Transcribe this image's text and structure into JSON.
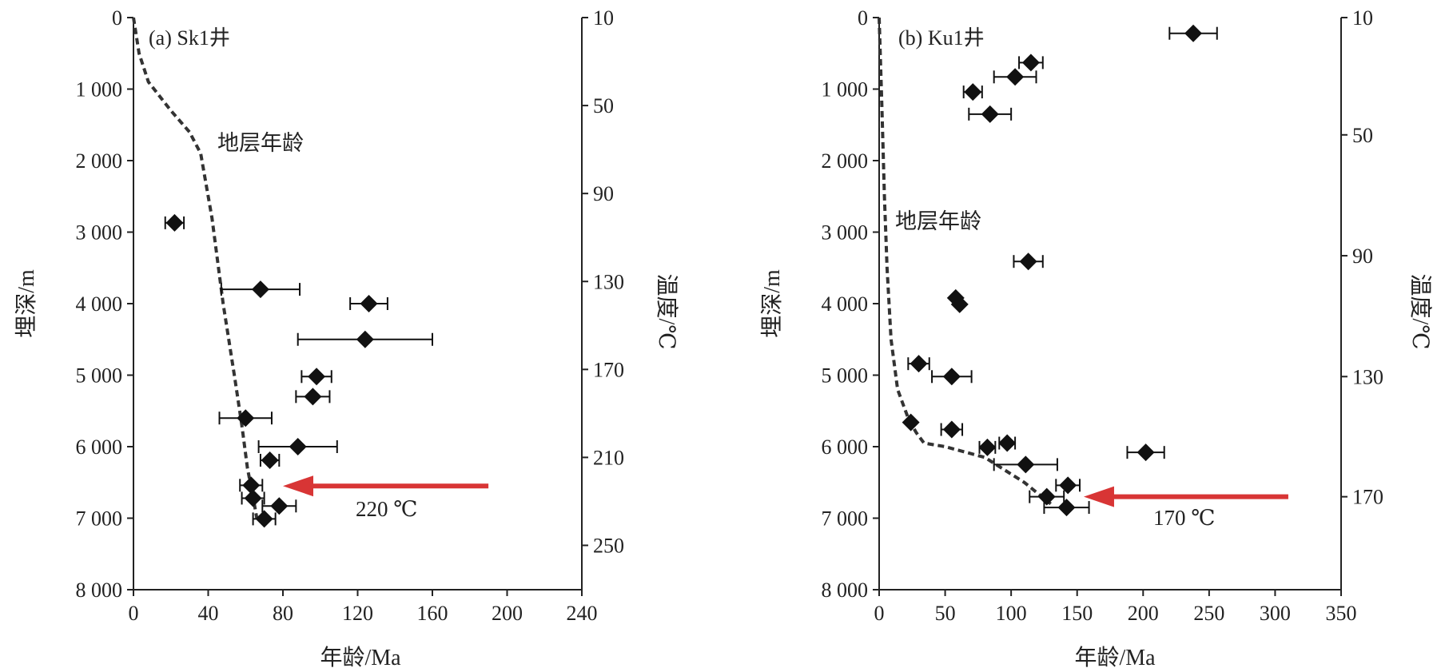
{
  "chart_data": [
    {
      "type": "scatter",
      "panel_label": "(a) Sk1井",
      "xlabel": "年龄/Ma",
      "ylabel": "埋深/m",
      "y2label": "温度/℃",
      "xlim": [
        0,
        240
      ],
      "ylim": [
        0,
        8000
      ],
      "x_ticks": [
        0,
        40,
        80,
        120,
        160,
        200,
        240
      ],
      "y_ticks": [
        0,
        1000,
        2000,
        3000,
        4000,
        5000,
        6000,
        7000,
        8000
      ],
      "y_tick_labels": [
        "0",
        "1 000",
        "2 000",
        "3 000",
        "4 000",
        "5 000",
        "6 000",
        "7 000",
        "8 000"
      ],
      "temp_ticks": [
        {
          "label": "10",
          "depth": 0
        },
        {
          "label": "50",
          "depth": 1230
        },
        {
          "label": "90",
          "depth": 2460
        },
        {
          "label": "130",
          "depth": 3690
        },
        {
          "label": "170",
          "depth": 4920
        },
        {
          "label": "210",
          "depth": 6150
        },
        {
          "label": "250",
          "depth": 7380
        }
      ],
      "strat_age_label": "地层年龄",
      "strat_age_curve": [
        {
          "x": 0,
          "y": 0
        },
        {
          "x": 3,
          "y": 500
        },
        {
          "x": 8,
          "y": 900
        },
        {
          "x": 20,
          "y": 1300
        },
        {
          "x": 30,
          "y": 1600
        },
        {
          "x": 36,
          "y": 1900
        },
        {
          "x": 42,
          "y": 2800
        },
        {
          "x": 48,
          "y": 4000
        },
        {
          "x": 54,
          "y": 5000
        },
        {
          "x": 58,
          "y": 5700
        },
        {
          "x": 61,
          "y": 6300
        },
        {
          "x": 64,
          "y": 6700
        },
        {
          "x": 66,
          "y": 7000
        }
      ],
      "points": [
        {
          "x": 22,
          "y": 2870,
          "xerr": 5
        },
        {
          "x": 68,
          "y": 3800,
          "xerr": 21
        },
        {
          "x": 126,
          "y": 4000,
          "xerr": 10
        },
        {
          "x": 124,
          "y": 4500,
          "xerr": 36
        },
        {
          "x": 98,
          "y": 5020,
          "xerr": 8
        },
        {
          "x": 96,
          "y": 5300,
          "xerr": 9
        },
        {
          "x": 60,
          "y": 5600,
          "xerr": 14
        },
        {
          "x": 88,
          "y": 6000,
          "xerr": 21
        },
        {
          "x": 73,
          "y": 6190,
          "xerr": 5
        },
        {
          "x": 63,
          "y": 6540,
          "xerr": 6
        },
        {
          "x": 64,
          "y": 6720,
          "xerr": 6
        },
        {
          "x": 78,
          "y": 6830,
          "xerr": 9
        },
        {
          "x": 70,
          "y": 7010,
          "xerr": 6
        }
      ],
      "arrow_label": "220 ℃",
      "arrow": {
        "from_x": 190,
        "to_x": 80,
        "y": 6550,
        "color": "#d83535"
      }
    },
    {
      "type": "scatter",
      "panel_label": "(b) Ku1井",
      "xlabel": "年龄/Ma",
      "ylabel": "埋深/m",
      "y2label": "温度/℃",
      "xlim": [
        0,
        350
      ],
      "ylim": [
        0,
        8000
      ],
      "x_ticks": [
        0,
        50,
        100,
        150,
        200,
        250,
        300,
        350
      ],
      "y_ticks": [
        0,
        1000,
        2000,
        3000,
        4000,
        5000,
        6000,
        7000,
        8000
      ],
      "y_tick_labels": [
        "0",
        "1 000",
        "2 000",
        "3 000",
        "4 000",
        "5 000",
        "6 000",
        "7 000",
        "8 000"
      ],
      "temp_ticks": [
        {
          "label": "10",
          "depth": 0
        },
        {
          "label": "50",
          "depth": 1640
        },
        {
          "label": "90",
          "depth": 3330
        },
        {
          "label": "130",
          "depth": 5020
        },
        {
          "label": "170",
          "depth": 6700
        }
      ],
      "strat_age_label": "地层年龄",
      "strat_age_curve": [
        {
          "x": 0,
          "y": 0
        },
        {
          "x": 2,
          "y": 1200
        },
        {
          "x": 4,
          "y": 2500
        },
        {
          "x": 6,
          "y": 3500
        },
        {
          "x": 9,
          "y": 4500
        },
        {
          "x": 14,
          "y": 5200
        },
        {
          "x": 22,
          "y": 5600
        },
        {
          "x": 28,
          "y": 5800
        },
        {
          "x": 34,
          "y": 5950
        },
        {
          "x": 50,
          "y": 6000
        },
        {
          "x": 80,
          "y": 6150
        },
        {
          "x": 110,
          "y": 6500
        },
        {
          "x": 130,
          "y": 6800
        }
      ],
      "points": [
        {
          "x": 238,
          "y": 220,
          "xerr": 18
        },
        {
          "x": 115,
          "y": 630,
          "xerr": 9
        },
        {
          "x": 103,
          "y": 830,
          "xerr": 16
        },
        {
          "x": 71,
          "y": 1040,
          "xerr": 7
        },
        {
          "x": 84,
          "y": 1350,
          "xerr": 16
        },
        {
          "x": 113,
          "y": 3410,
          "xerr": 11
        },
        {
          "x": 58,
          "y": 3920,
          "xerr": 0
        },
        {
          "x": 61,
          "y": 4010,
          "xerr": 0
        },
        {
          "x": 30,
          "y": 4840,
          "xerr": 8
        },
        {
          "x": 55,
          "y": 5020,
          "xerr": 15
        },
        {
          "x": 24,
          "y": 5660,
          "xerr": 0
        },
        {
          "x": 55,
          "y": 5760,
          "xerr": 8
        },
        {
          "x": 82,
          "y": 6010,
          "xerr": 6
        },
        {
          "x": 97,
          "y": 5950,
          "xerr": 6
        },
        {
          "x": 202,
          "y": 6080,
          "xerr": 14
        },
        {
          "x": 111,
          "y": 6250,
          "xerr": 24
        },
        {
          "x": 143,
          "y": 6540,
          "xerr": 9
        },
        {
          "x": 127,
          "y": 6700,
          "xerr": 13
        },
        {
          "x": 142,
          "y": 6850,
          "xerr": 17
        }
      ],
      "arrow_label": "170 ℃",
      "arrow": {
        "from_x": 310,
        "to_x": 155,
        "y": 6700,
        "color": "#d83535"
      }
    }
  ]
}
